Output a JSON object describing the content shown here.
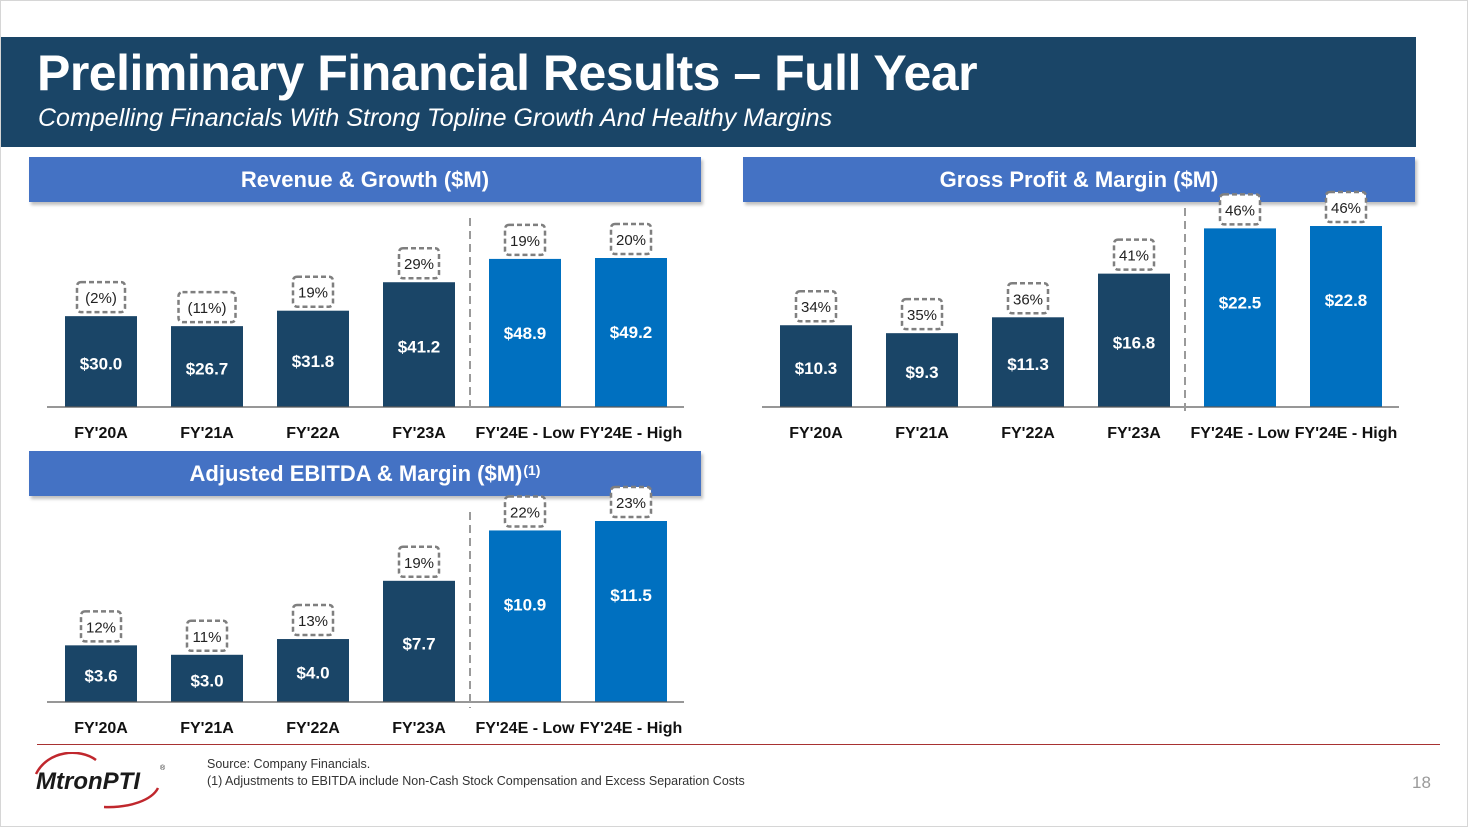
{
  "header": {
    "title": "Preliminary Financial Results – Full Year",
    "subtitle": "Compelling Financials With Strong Topline Growth And Healthy Margins"
  },
  "colors": {
    "title_band": "#1a4567",
    "panel_header": "#4472c4",
    "bar_actual": "#1a4567",
    "bar_estimate": "#0070c0",
    "label_border": "#7f7f7f",
    "footer_rule": "#a83232"
  },
  "chart_data": [
    {
      "id": "revenue",
      "type": "bar",
      "title": "Revenue & Growth ($M)",
      "title_footnote": "",
      "categories": [
        "FY'20A",
        "FY'21A",
        "FY'22A",
        "FY'23A",
        "FY'24E - Low",
        "FY'24E - High"
      ],
      "values": [
        30.0,
        26.7,
        31.8,
        41.2,
        48.9,
        49.2
      ],
      "value_labels": [
        "$30.0",
        "$26.7",
        "$31.8",
        "$41.2",
        "$48.9",
        "$49.2"
      ],
      "annotations": [
        "(2%)",
        "(11%)",
        "19%",
        "29%",
        "19%",
        "20%"
      ],
      "annotation_label": "growth",
      "estimate_start_index": 4,
      "ylim": [
        0,
        49.2
      ]
    },
    {
      "id": "gross_profit",
      "type": "bar",
      "title": "Gross Profit & Margin ($M)",
      "title_footnote": "",
      "categories": [
        "FY'20A",
        "FY'21A",
        "FY'22A",
        "FY'23A",
        "FY'24E - Low",
        "FY'24E - High"
      ],
      "values": [
        10.3,
        9.3,
        11.3,
        16.8,
        22.5,
        22.8
      ],
      "value_labels": [
        "$10.3",
        "$9.3",
        "$11.3",
        "$16.8",
        "$22.5",
        "$22.8"
      ],
      "annotations": [
        "34%",
        "35%",
        "36%",
        "41%",
        "46%",
        "46%"
      ],
      "annotation_label": "margin",
      "estimate_start_index": 4,
      "ylim": [
        0,
        22.8
      ]
    },
    {
      "id": "ebitda",
      "type": "bar",
      "title": "Adjusted EBITDA & Margin ($M)",
      "title_footnote": "(1)",
      "categories": [
        "FY'20A",
        "FY'21A",
        "FY'22A",
        "FY'23A",
        "FY'24E - Low",
        "FY'24E - High"
      ],
      "values": [
        3.6,
        3.0,
        4.0,
        7.7,
        10.9,
        11.5
      ],
      "value_labels": [
        "$3.6",
        "$3.0",
        "$4.0",
        "$7.7",
        "$10.9",
        "$11.5"
      ],
      "annotations": [
        "12%",
        "11%",
        "13%",
        "19%",
        "22%",
        "23%"
      ],
      "annotation_label": "margin",
      "estimate_start_index": 4,
      "ylim": [
        0,
        11.5
      ]
    }
  ],
  "footer": {
    "source": "Source: Company Financials.",
    "note": "(1) Adjustments to EBITDA include Non-Cash Stock Compensation and Excess Separation Costs",
    "page_number": "18",
    "logo_text": "MtronPTI",
    "logo_mark": "®"
  }
}
